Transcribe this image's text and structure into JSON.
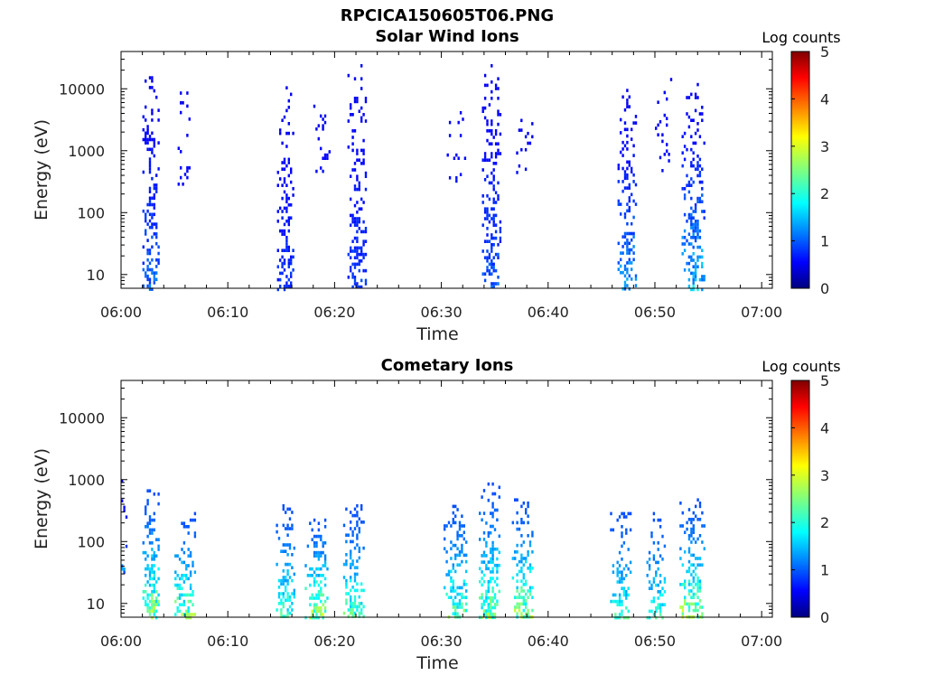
{
  "figure": {
    "title": "RPCICA150605T06.PNG",
    "width": 1024,
    "height": 768
  },
  "chart_data": [
    {
      "type": "heatmap",
      "title": "Solar Wind Ions",
      "xlabel": "Time",
      "ylabel": "Energy (eV)",
      "x_tick_labels": [
        "06:00",
        "06:10",
        "06:20",
        "06:30",
        "06:40",
        "06:50",
        "07:00"
      ],
      "x_range_minutes": [
        0,
        61
      ],
      "y_scale": "log",
      "y_tick_values": [
        10,
        100,
        1000,
        10000
      ],
      "y_tick_labels": [
        "10",
        "100",
        "1000",
        "10000"
      ],
      "y_range": [
        6,
        40000
      ],
      "colorbar": {
        "label": "Log counts",
        "range": [
          0,
          5
        ],
        "tick_labels": [
          "0",
          "1",
          "2",
          "3",
          "4",
          "5"
        ],
        "colormap": "jet"
      },
      "note_values": "sparse pixel cells: [minute, energy_eV, log_counts]",
      "clusters": [
        {
          "t": [
            2.0,
            3.5
          ],
          "e_min": 6,
          "e_max": 16000,
          "level_min": 0.0,
          "level_max": 0.9,
          "density": 0.45
        },
        {
          "t": [
            5.3,
            6.5
          ],
          "e_min": 300,
          "e_max": 13000,
          "level_min": 0.0,
          "level_max": 0.2,
          "density": 0.18
        },
        {
          "t": [
            14.6,
            16.2
          ],
          "e_min": 6,
          "e_max": 11000,
          "level_min": 0.0,
          "level_max": 0.5,
          "density": 0.4
        },
        {
          "t": [
            18.0,
            19.8
          ],
          "e_min": 400,
          "e_max": 9000,
          "level_min": 0.0,
          "level_max": 0.2,
          "density": 0.15
        },
        {
          "t": [
            21.2,
            23.0
          ],
          "e_min": 6,
          "e_max": 25000,
          "level_min": 0.0,
          "level_max": 0.6,
          "density": 0.42
        },
        {
          "t": [
            30.5,
            32.5
          ],
          "e_min": 300,
          "e_max": 9000,
          "level_min": 0.0,
          "level_max": 0.2,
          "density": 0.13
        },
        {
          "t": [
            33.8,
            35.6
          ],
          "e_min": 6,
          "e_max": 25000,
          "level_min": 0.0,
          "level_max": 0.8,
          "density": 0.45
        },
        {
          "t": [
            37.0,
            38.8
          ],
          "e_min": 400,
          "e_max": 6000,
          "level_min": 0.0,
          "level_max": 0.2,
          "density": 0.18
        },
        {
          "t": [
            46.5,
            48.3
          ],
          "e_min": 6,
          "e_max": 10000,
          "level_min": 0.0,
          "level_max": 1.3,
          "density": 0.45
        },
        {
          "t": [
            50.0,
            51.5
          ],
          "e_min": 400,
          "e_max": 15000,
          "level_min": 0.0,
          "level_max": 0.2,
          "density": 0.15
        },
        {
          "t": [
            52.5,
            54.6
          ],
          "e_min": 6,
          "e_max": 14000,
          "level_min": 0.0,
          "level_max": 1.6,
          "density": 0.45
        }
      ]
    },
    {
      "type": "heatmap",
      "title": "Cometary Ions",
      "xlabel": "Time",
      "ylabel": "Energy (eV)",
      "x_tick_labels": [
        "06:00",
        "06:10",
        "06:20",
        "06:30",
        "06:40",
        "06:50",
        "07:00"
      ],
      "x_range_minutes": [
        0,
        61
      ],
      "y_scale": "log",
      "y_tick_values": [
        10,
        100,
        1000,
        10000
      ],
      "y_tick_labels": [
        "10",
        "100",
        "1000",
        "10000"
      ],
      "y_range": [
        6,
        40000
      ],
      "colorbar": {
        "label": "Log counts",
        "range": [
          0,
          5
        ],
        "tick_labels": [
          "0",
          "1",
          "2",
          "3",
          "4",
          "5"
        ],
        "colormap": "jet"
      },
      "note_values": "sparse pixel cells: [minute, energy_eV, log_counts]",
      "clusters": [
        {
          "t": [
            0.0,
            0.6
          ],
          "e_min": 30,
          "e_max": 1000,
          "level_min": 0.0,
          "level_max": 1.2,
          "density": 0.3
        },
        {
          "t": [
            2.0,
            3.5
          ],
          "e_min": 6,
          "e_max": 700,
          "level_min": 0.5,
          "level_max": 2.9,
          "density": 0.6
        },
        {
          "t": [
            5.0,
            7.0
          ],
          "e_min": 6,
          "e_max": 300,
          "level_min": 0.5,
          "level_max": 2.8,
          "density": 0.6
        },
        {
          "t": [
            14.5,
            16.3
          ],
          "e_min": 6,
          "e_max": 400,
          "level_min": 0.5,
          "level_max": 2.4,
          "density": 0.55
        },
        {
          "t": [
            17.2,
            19.4
          ],
          "e_min": 6,
          "e_max": 300,
          "level_min": 0.5,
          "level_max": 3.0,
          "density": 0.55
        },
        {
          "t": [
            20.8,
            22.8
          ],
          "e_min": 6,
          "e_max": 400,
          "level_min": 0.5,
          "level_max": 2.5,
          "density": 0.55
        },
        {
          "t": [
            30.2,
            32.4
          ],
          "e_min": 6,
          "e_max": 500,
          "level_min": 0.5,
          "level_max": 2.5,
          "density": 0.55
        },
        {
          "t": [
            33.5,
            35.5
          ],
          "e_min": 6,
          "e_max": 900,
          "level_min": 0.5,
          "level_max": 2.7,
          "density": 0.55
        },
        {
          "t": [
            36.6,
            38.6
          ],
          "e_min": 6,
          "e_max": 500,
          "level_min": 0.5,
          "level_max": 3.0,
          "density": 0.55
        },
        {
          "t": [
            45.8,
            47.8
          ],
          "e_min": 6,
          "e_max": 300,
          "level_min": 0.5,
          "level_max": 2.2,
          "density": 0.45
        },
        {
          "t": [
            49.2,
            51.0
          ],
          "e_min": 6,
          "e_max": 300,
          "level_min": 0.5,
          "level_max": 2.2,
          "density": 0.45
        },
        {
          "t": [
            52.3,
            54.6
          ],
          "e_min": 6,
          "e_max": 500,
          "level_min": 0.5,
          "level_max": 3.0,
          "density": 0.55
        }
      ]
    }
  ]
}
